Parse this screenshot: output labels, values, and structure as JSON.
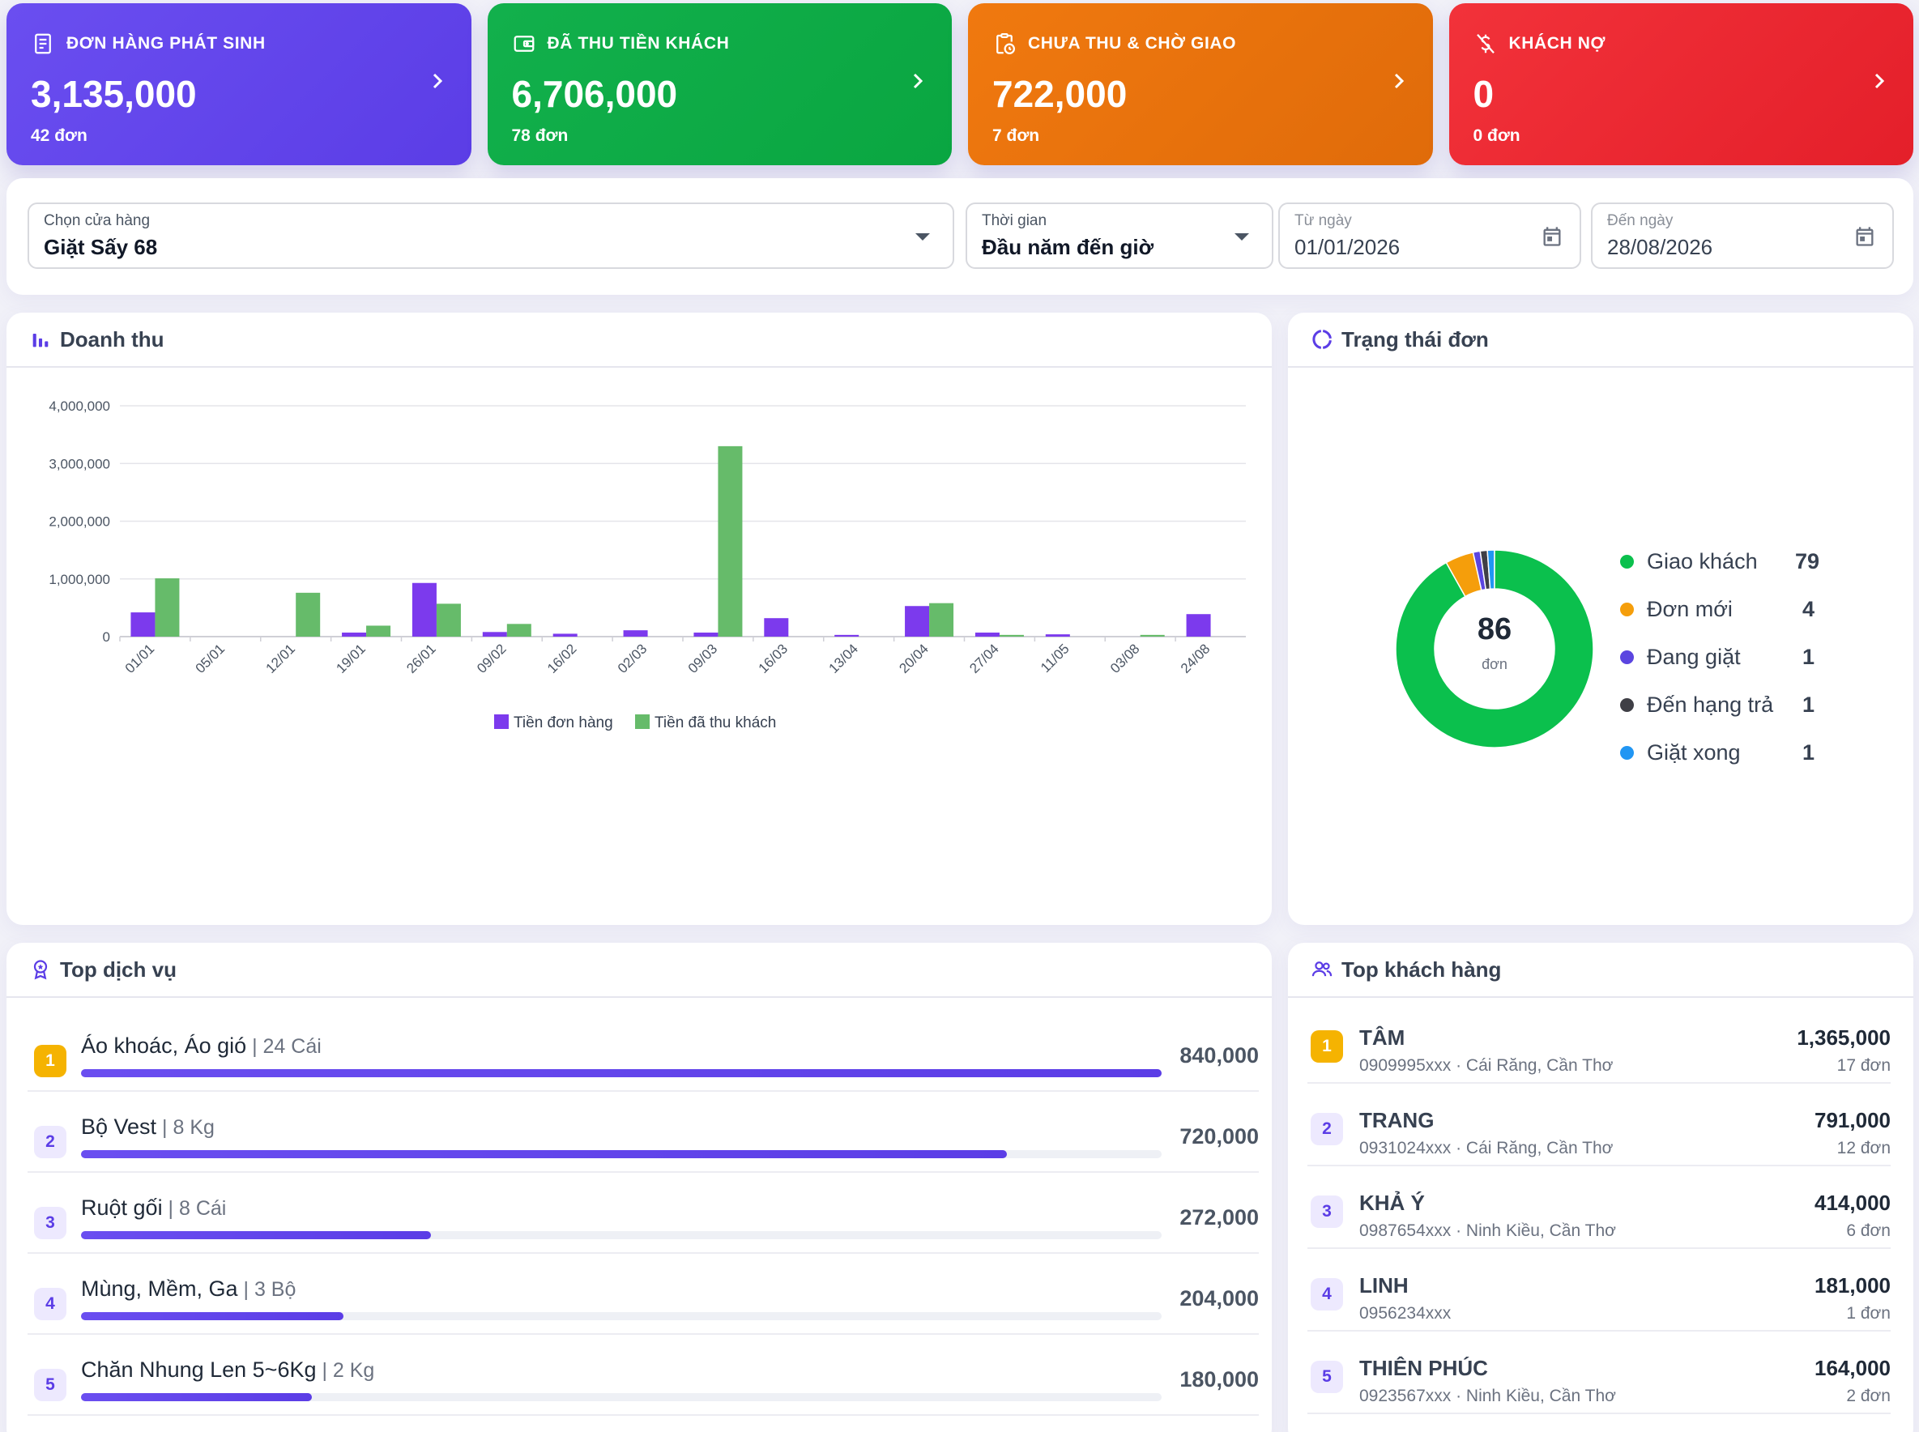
{
  "kpis": [
    {
      "title": "ĐƠN HÀNG PHÁT SINH",
      "value": "3,135,000",
      "count": "42 đơn",
      "icon": "receipt-icon",
      "color": "#5b3de6"
    },
    {
      "title": "ĐÃ THU TIỀN KHÁCH",
      "value": "6,706,000",
      "count": "78 đơn",
      "icon": "wallet-icon",
      "color": "#0aa641"
    },
    {
      "title": "CHƯA THU & CHỜ GIAO",
      "value": "722,000",
      "count": "7 đơn",
      "icon": "clipboard-clock-icon",
      "color": "#e06b0a"
    },
    {
      "title": "KHÁCH NỢ",
      "value": "0",
      "count": "0 đơn",
      "icon": "money-off-icon",
      "color": "#e41f2a"
    }
  ],
  "filters": {
    "store": {
      "label": "Chọn cửa hàng",
      "value": "Giặt Sấy 68"
    },
    "period": {
      "label": "Thời gian",
      "value": "Đầu năm đến giờ"
    },
    "from": {
      "label": "Từ ngày",
      "value": "01/01/2026"
    },
    "to": {
      "label": "Đến ngày",
      "value": "28/08/2026"
    }
  },
  "revenue_panel": {
    "title": "Doanh thu"
  },
  "status_panel": {
    "title": "Trạng thái đơn",
    "total": "86",
    "unit": "đơn",
    "items": [
      {
        "name": "Giao khách",
        "count": 79,
        "color": "#0bc04d"
      },
      {
        "name": "Đơn mới",
        "count": 4,
        "color": "#f59e0b"
      },
      {
        "name": "Đang giặt",
        "count": 1,
        "color": "#5b45e0"
      },
      {
        "name": "Đến hạng trả",
        "count": 1,
        "color": "#3f3f46"
      },
      {
        "name": "Giặt xong",
        "count": 1,
        "color": "#2196f3"
      }
    ]
  },
  "services_panel": {
    "title": "Top dịch vụ",
    "items": [
      {
        "rank": "1",
        "name": "Áo khoác, Áo gió",
        "qty": "24 Cái",
        "amount": "840,000",
        "share": 1.0
      },
      {
        "rank": "2",
        "name": "Bộ Vest",
        "qty": "8 Kg",
        "amount": "720,000",
        "share": 0.857
      },
      {
        "rank": "3",
        "name": "Ruột gối",
        "qty": "8 Cái",
        "amount": "272,000",
        "share": 0.324
      },
      {
        "rank": "4",
        "name": "Mùng, Mềm, Ga",
        "qty": "3 Bộ",
        "amount": "204,000",
        "share": 0.243
      },
      {
        "rank": "5",
        "name": "Chăn Nhung Len 5~6Kg",
        "qty": "2 Kg",
        "amount": "180,000",
        "share": 0.214
      }
    ]
  },
  "customers_panel": {
    "title": "Top khách hàng",
    "items": [
      {
        "rank": "1",
        "name": "TÂM",
        "sub": "0909995xxx · Cái Răng, Cần Thơ",
        "amount": "1,365,000",
        "orders": "17 đơn"
      },
      {
        "rank": "2",
        "name": "TRANG",
        "sub": "0931024xxx · Cái Răng, Cần Thơ",
        "amount": "791,000",
        "orders": "12 đơn"
      },
      {
        "rank": "3",
        "name": "KHẢ Ý",
        "sub": "0987654xxx · Ninh Kiều, Cần Thơ",
        "amount": "414,000",
        "orders": "6 đơn"
      },
      {
        "rank": "4",
        "name": "LINH",
        "sub": "0956234xxx",
        "amount": "181,000",
        "orders": "1 đơn"
      },
      {
        "rank": "5",
        "name": "THIÊN PHÚC",
        "sub": "0923567xxx · Ninh Kiều, Cần Thơ",
        "amount": "164,000",
        "orders": "2 đơn"
      }
    ]
  },
  "chart_data": {
    "type": "bar",
    "categories": [
      "01/01",
      "05/01",
      "12/01",
      "19/01",
      "26/01",
      "09/02",
      "16/02",
      "02/03",
      "09/03",
      "16/03",
      "13/04",
      "20/04",
      "27/04",
      "11/05",
      "03/08",
      "24/08"
    ],
    "series": [
      {
        "name": "Tiền đơn hàng",
        "color": "#7c3aed",
        "values": [
          420000,
          0,
          0,
          70000,
          930000,
          80000,
          50000,
          110000,
          70000,
          320000,
          30000,
          530000,
          70000,
          40000,
          0,
          390000
        ]
      },
      {
        "name": "Tiền đã thu khách",
        "color": "#66bb6a",
        "values": [
          1010000,
          0,
          760000,
          190000,
          570000,
          220000,
          0,
          0,
          3300000,
          0,
          0,
          580000,
          30000,
          0,
          30000,
          0
        ]
      }
    ],
    "yticks": [
      "0",
      "1,000,000",
      "2,000,000",
      "3,000,000",
      "4,000,000"
    ],
    "ylim": [
      0,
      4000000
    ],
    "legend": "bottom-center",
    "grid": true
  }
}
